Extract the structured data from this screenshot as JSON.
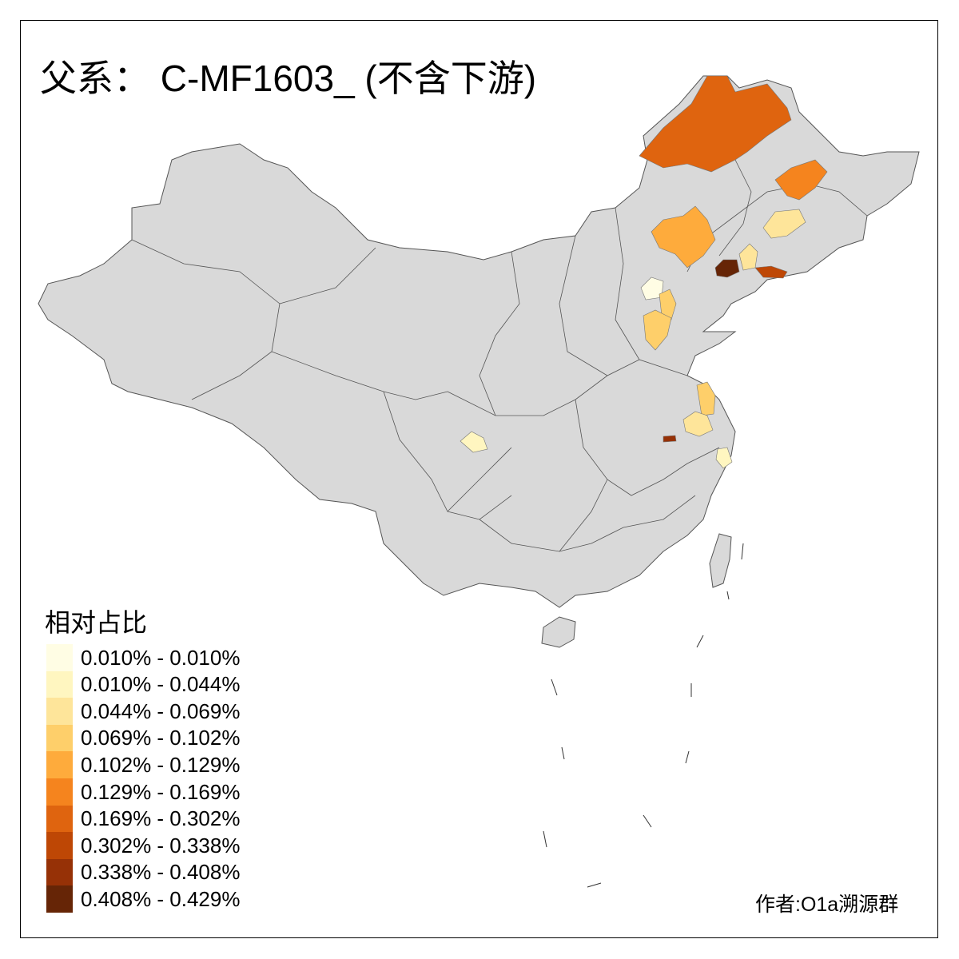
{
  "title": "父系： C-MF1603_ (不含下游)",
  "legend": {
    "title": "相对占比",
    "items": [
      {
        "label": "0.010% - 0.010%",
        "color": "#FFFDE4"
      },
      {
        "label": "0.010% - 0.044%",
        "color": "#FFF6C0"
      },
      {
        "label": "0.044% - 0.069%",
        "color": "#FEE59A"
      },
      {
        "label": "0.069% - 0.102%",
        "color": "#FECF6A"
      },
      {
        "label": "0.102% - 0.129%",
        "color": "#FEAB3C"
      },
      {
        "label": "0.129% - 0.169%",
        "color": "#F5841E"
      },
      {
        "label": "0.169% - 0.302%",
        "color": "#DF640F"
      },
      {
        "label": "0.302% - 0.338%",
        "color": "#BE4705"
      },
      {
        "label": "0.338% - 0.408%",
        "color": "#963106"
      },
      {
        "label": "0.408% - 0.429%",
        "color": "#662506"
      }
    ]
  },
  "map": {
    "base_color": "#D9D9D9",
    "border_color": "#555555"
  },
  "author": "作者:O1a溯源群"
}
